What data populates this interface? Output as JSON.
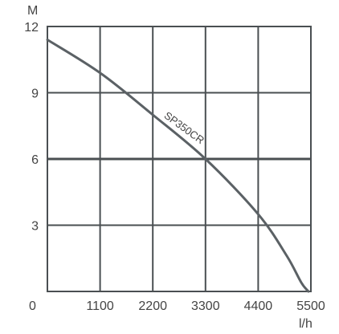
{
  "chart_data": {
    "type": "line",
    "title": "",
    "xlabel": "l/h",
    "ylabel": "M",
    "xlim": [
      0,
      5500
    ],
    "ylim": [
      0,
      12
    ],
    "x_ticks": [
      1100,
      2200,
      3300,
      4400,
      5500
    ],
    "y_ticks": [
      3,
      6,
      9,
      12
    ],
    "origin_label": "0",
    "grid": true,
    "legend": "none",
    "colors": {
      "grid": "#4a4f52",
      "curve": "#5b6165",
      "text": "#444444"
    },
    "series": [
      {
        "name": "SP350CR",
        "x": [
          0,
          1100,
          2200,
          3300,
          4400,
          5000,
          5300,
          5450
        ],
        "y": [
          11.4,
          9.9,
          8.0,
          6.0,
          3.5,
          1.6,
          0.4,
          0.0
        ]
      }
    ]
  }
}
